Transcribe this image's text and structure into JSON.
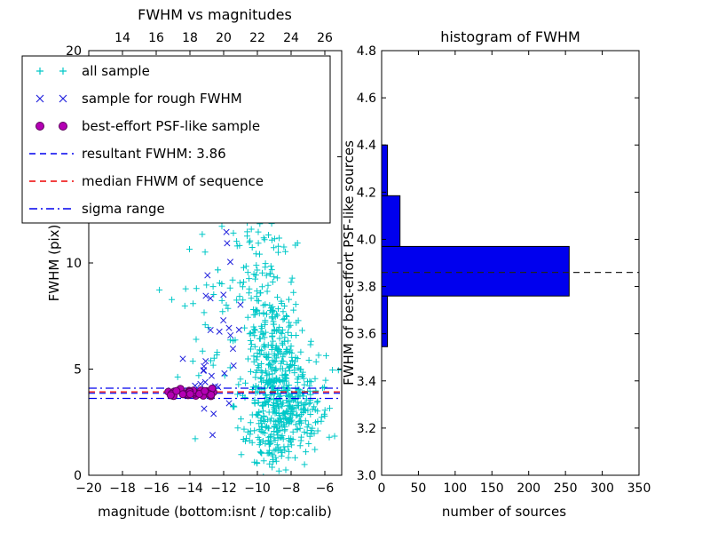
{
  "figure": {
    "background": "#ffffff",
    "frame_color": "#000000"
  },
  "chart_data": [
    {
      "type": "scatter",
      "title": "FWHM vs magnitudes",
      "xlabel": "magnitude (bottom:isnt / top:calib)",
      "ylabel": "FWHM (pix)",
      "xlim": [
        -20,
        -5
      ],
      "ylim": [
        0,
        20
      ],
      "xticks_bottom": {
        "values": [
          -20,
          -18,
          -16,
          -14,
          -12,
          -10,
          -8,
          -6
        ],
        "labels": [
          "−20",
          "−18",
          "−16",
          "−14",
          "−12",
          "−10",
          "−8",
          "−6"
        ]
      },
      "xticks_top": {
        "values_in_bottom_scale": [
          -18,
          -16,
          -14,
          -12,
          -10,
          -8,
          -6
        ],
        "labels": [
          "14",
          "16",
          "18",
          "20",
          "22",
          "24",
          "26"
        ]
      },
      "yticks": {
        "values": [
          0,
          5,
          10,
          15,
          20
        ],
        "labels": [
          "0",
          "5",
          "10",
          "15",
          "20"
        ]
      },
      "series": [
        {
          "name": "all sample",
          "marker": "plus",
          "color": "#00c8c8",
          "clusters": [
            {
              "cx": -8.9,
              "cy": 3.8,
              "sx": 0.85,
              "sy": 1.9,
              "n": 420
            },
            {
              "cx": -9.7,
              "cy": 8.0,
              "sx": 0.95,
              "sy": 3.2,
              "n": 170
            },
            {
              "cx": -10.4,
              "cy": 16.0,
              "sx": 0.8,
              "sy": 2.3,
              "n": 40
            },
            {
              "cx": -12.4,
              "cy": 7.0,
              "sx": 1.5,
              "sy": 2.6,
              "n": 55
            },
            {
              "cx": -7.3,
              "cy": 3.1,
              "sx": 0.8,
              "sy": 1.2,
              "n": 90
            },
            {
              "cx": -6.3,
              "cy": 3.4,
              "sx": 0.5,
              "sy": 1.6,
              "n": 14
            }
          ]
        },
        {
          "name": "sample for rough FWHM",
          "marker": "x",
          "color": "#2222dd",
          "clusters": [
            {
              "cx": -12.4,
              "cy": 7.6,
              "sx": 0.85,
              "sy": 2.4,
              "n": 26
            },
            {
              "cx": -13.2,
              "cy": 4.6,
              "sx": 0.5,
              "sy": 0.6,
              "n": 6
            }
          ]
        },
        {
          "name": "best-effort PSF-like sample",
          "marker": "dot",
          "color": "#b400b4",
          "edge_color": "#5c005c",
          "band": {
            "x0": -15.4,
            "x1": -12.5,
            "y": 3.85,
            "sy": 0.1,
            "n": 46
          }
        }
      ],
      "lines": [
        {
          "name": "resultant FWHM: 3.86",
          "style": "dashed",
          "color": "#0000ee",
          "y": 3.86
        },
        {
          "name": "median FHWM of sequence",
          "style": "dashed",
          "color": "#ee0000",
          "y": 3.93
        },
        {
          "name": "sigma range",
          "style": "dashdot",
          "color": "#0000ee",
          "y": [
            3.62,
            4.1
          ]
        }
      ],
      "legend": [
        {
          "label": "all sample",
          "type": "marker",
          "marker": "plus",
          "color": "#00c8c8"
        },
        {
          "label": "sample for rough FWHM",
          "type": "marker",
          "marker": "x",
          "color": "#2222dd"
        },
        {
          "label": "best-effort PSF-like sample",
          "type": "marker",
          "marker": "dot",
          "color": "#b400b4"
        },
        {
          "label": "resultant FWHM: 3.86",
          "type": "line",
          "style": "dashed",
          "color": "#0000ee"
        },
        {
          "label": "median FHWM of sequence",
          "type": "line",
          "style": "dashed",
          "color": "#ee0000"
        },
        {
          "label": "sigma range",
          "type": "line",
          "style": "dashdot",
          "color": "#0000ee"
        }
      ]
    },
    {
      "type": "bar",
      "orientation": "horizontal",
      "title": "histogram of FWHM",
      "xlabel": "number of sources",
      "ylabel": "FWHM of best-effort PSF-like sources",
      "xlim": [
        0,
        350
      ],
      "ylim": [
        3.0,
        4.8
      ],
      "xticks": {
        "values": [
          0,
          50,
          100,
          150,
          200,
          250,
          300,
          350
        ],
        "labels": [
          "0",
          "50",
          "100",
          "150",
          "200",
          "250",
          "300",
          "350"
        ]
      },
      "yticks": {
        "values": [
          3.0,
          3.2,
          3.4,
          3.6,
          3.8,
          4.0,
          4.2,
          4.4,
          4.6,
          4.8
        ],
        "labels": [
          "3.0",
          "3.2",
          "3.4",
          "3.6",
          "3.8",
          "4.0",
          "4.2",
          "4.4",
          "4.6",
          "4.8"
        ]
      },
      "bar_color": "#0000ee",
      "bins": [
        {
          "from": 3.545,
          "to": 3.76,
          "count": 8
        },
        {
          "from": 3.76,
          "to": 3.97,
          "count": 255
        },
        {
          "from": 3.97,
          "to": 4.185,
          "count": 25
        },
        {
          "from": 4.185,
          "to": 4.4,
          "count": 8
        }
      ],
      "median_line": {
        "style": "dashed",
        "color": "#222222",
        "y": 3.86
      }
    }
  ]
}
